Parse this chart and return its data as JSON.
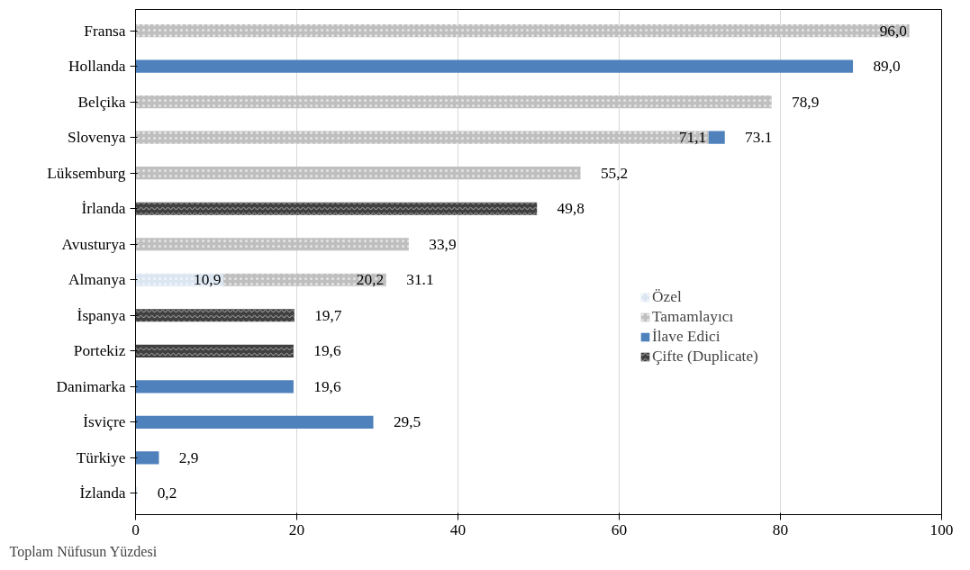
{
  "chart_data": {
    "type": "bar",
    "orientation": "horizontal",
    "stacked": true,
    "xlabel": "Toplam Nüfusun Yüzdesi",
    "categories": [
      "Fransa",
      "Hollanda",
      "Belçika",
      "Slovenya",
      "Lüksemburg",
      "İrlanda",
      "Avusturya",
      "Almanya",
      "İspanya",
      "Portekiz",
      "Danimarka",
      "İsviçre",
      "Türkiye",
      "İzlanda"
    ],
    "series": [
      {
        "name": "Özel",
        "color": "#dce6f2",
        "values": [
          null,
          null,
          null,
          null,
          null,
          null,
          null,
          10.9,
          null,
          null,
          null,
          null,
          null,
          0.2
        ],
        "value_labels": [
          null,
          null,
          null,
          null,
          null,
          null,
          null,
          "10,9",
          null,
          null,
          null,
          null,
          null,
          "0,2"
        ]
      },
      {
        "name": "Tamamlayıcı",
        "color": "#bfbfbf",
        "values": [
          96.0,
          null,
          78.9,
          71.1,
          55.2,
          null,
          33.9,
          20.2,
          null,
          null,
          null,
          null,
          null,
          null
        ],
        "value_labels": [
          "96,0",
          null,
          "78,9",
          "71,1",
          "55,2",
          null,
          "33,9",
          "20,2",
          null,
          null,
          null,
          null,
          null,
          null
        ]
      },
      {
        "name": "İlave Edici",
        "color": "#4f81bd",
        "values": [
          null,
          89.0,
          null,
          2.0,
          null,
          null,
          null,
          null,
          null,
          null,
          19.6,
          29.5,
          2.9,
          null
        ],
        "value_labels": [
          null,
          "89,0",
          null,
          null,
          null,
          null,
          null,
          null,
          null,
          null,
          "19,6",
          "29,5",
          "2,9",
          null
        ]
      },
      {
        "name": "Çifte (Duplicate)",
        "color": "#404040",
        "values": [
          null,
          null,
          null,
          null,
          null,
          49.8,
          null,
          null,
          19.7,
          19.6,
          null,
          null,
          null,
          null
        ],
        "value_labels": [
          null,
          null,
          null,
          null,
          null,
          "49,8",
          null,
          null,
          "19,7",
          "19,6",
          null,
          null,
          null,
          null
        ]
      }
    ],
    "totals": [
      null,
      null,
      null,
      "73.1",
      null,
      null,
      null,
      "31.1",
      null,
      null,
      null,
      null,
      null,
      null
    ],
    "xlim": [
      0,
      100
    ],
    "xticks": [
      0,
      20,
      40,
      60,
      80,
      100
    ],
    "grid": "x",
    "legend": "right"
  }
}
